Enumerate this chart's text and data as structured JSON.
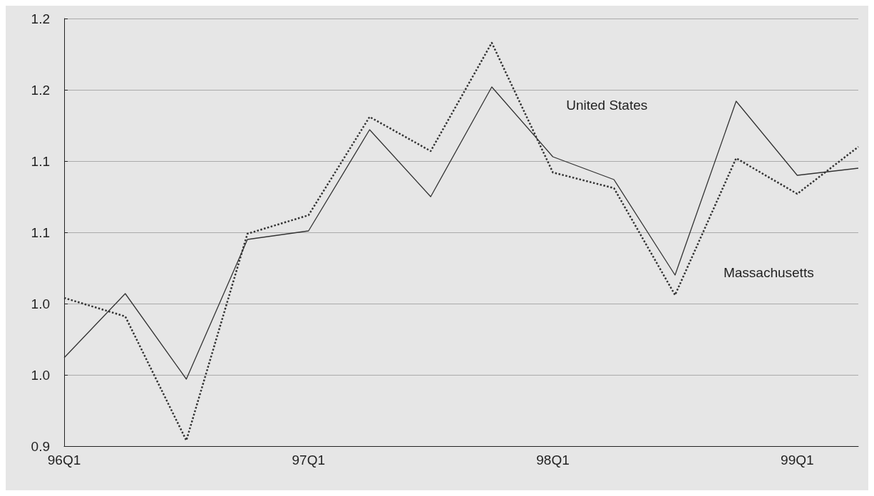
{
  "chart_data": {
    "type": "line",
    "categories": [
      "96Q1",
      null,
      null,
      null,
      "97Q1",
      null,
      null,
      null,
      "98Q1",
      null,
      null,
      null,
      "99Q1",
      null
    ],
    "series": [
      {
        "name": "United States",
        "color": "#333333",
        "line_style": "solid",
        "values": [
          0.962,
          1.007,
          0.947,
          1.045,
          1.051,
          1.122,
          1.075,
          1.152,
          1.103,
          1.087,
          1.02,
          1.142,
          1.09,
          1.095
        ]
      },
      {
        "name": "Massachusetts",
        "color": "#333333",
        "line_style": "dotted",
        "values": [
          1.004,
          0.991,
          0.904,
          1.049,
          1.062,
          1.131,
          1.107,
          1.183,
          1.092,
          1.081,
          1.006,
          1.102,
          1.077,
          1.11
        ]
      }
    ],
    "ylim": [
      0.9,
      1.2
    ],
    "yticks": [
      0.9,
      {
        "value": 0.95,
        "label": "1.0"
      },
      {
        "value": 1.0,
        "label": "1.0"
      },
      {
        "value": 1.05,
        "label": "1.1"
      },
      {
        "value": 1.1,
        "label": "1.1"
      },
      {
        "value": 1.15,
        "label": "1.2"
      },
      {
        "value": 1.2,
        "label": "1.2"
      }
    ],
    "grid": "y",
    "legend": false,
    "marker": "none"
  }
}
